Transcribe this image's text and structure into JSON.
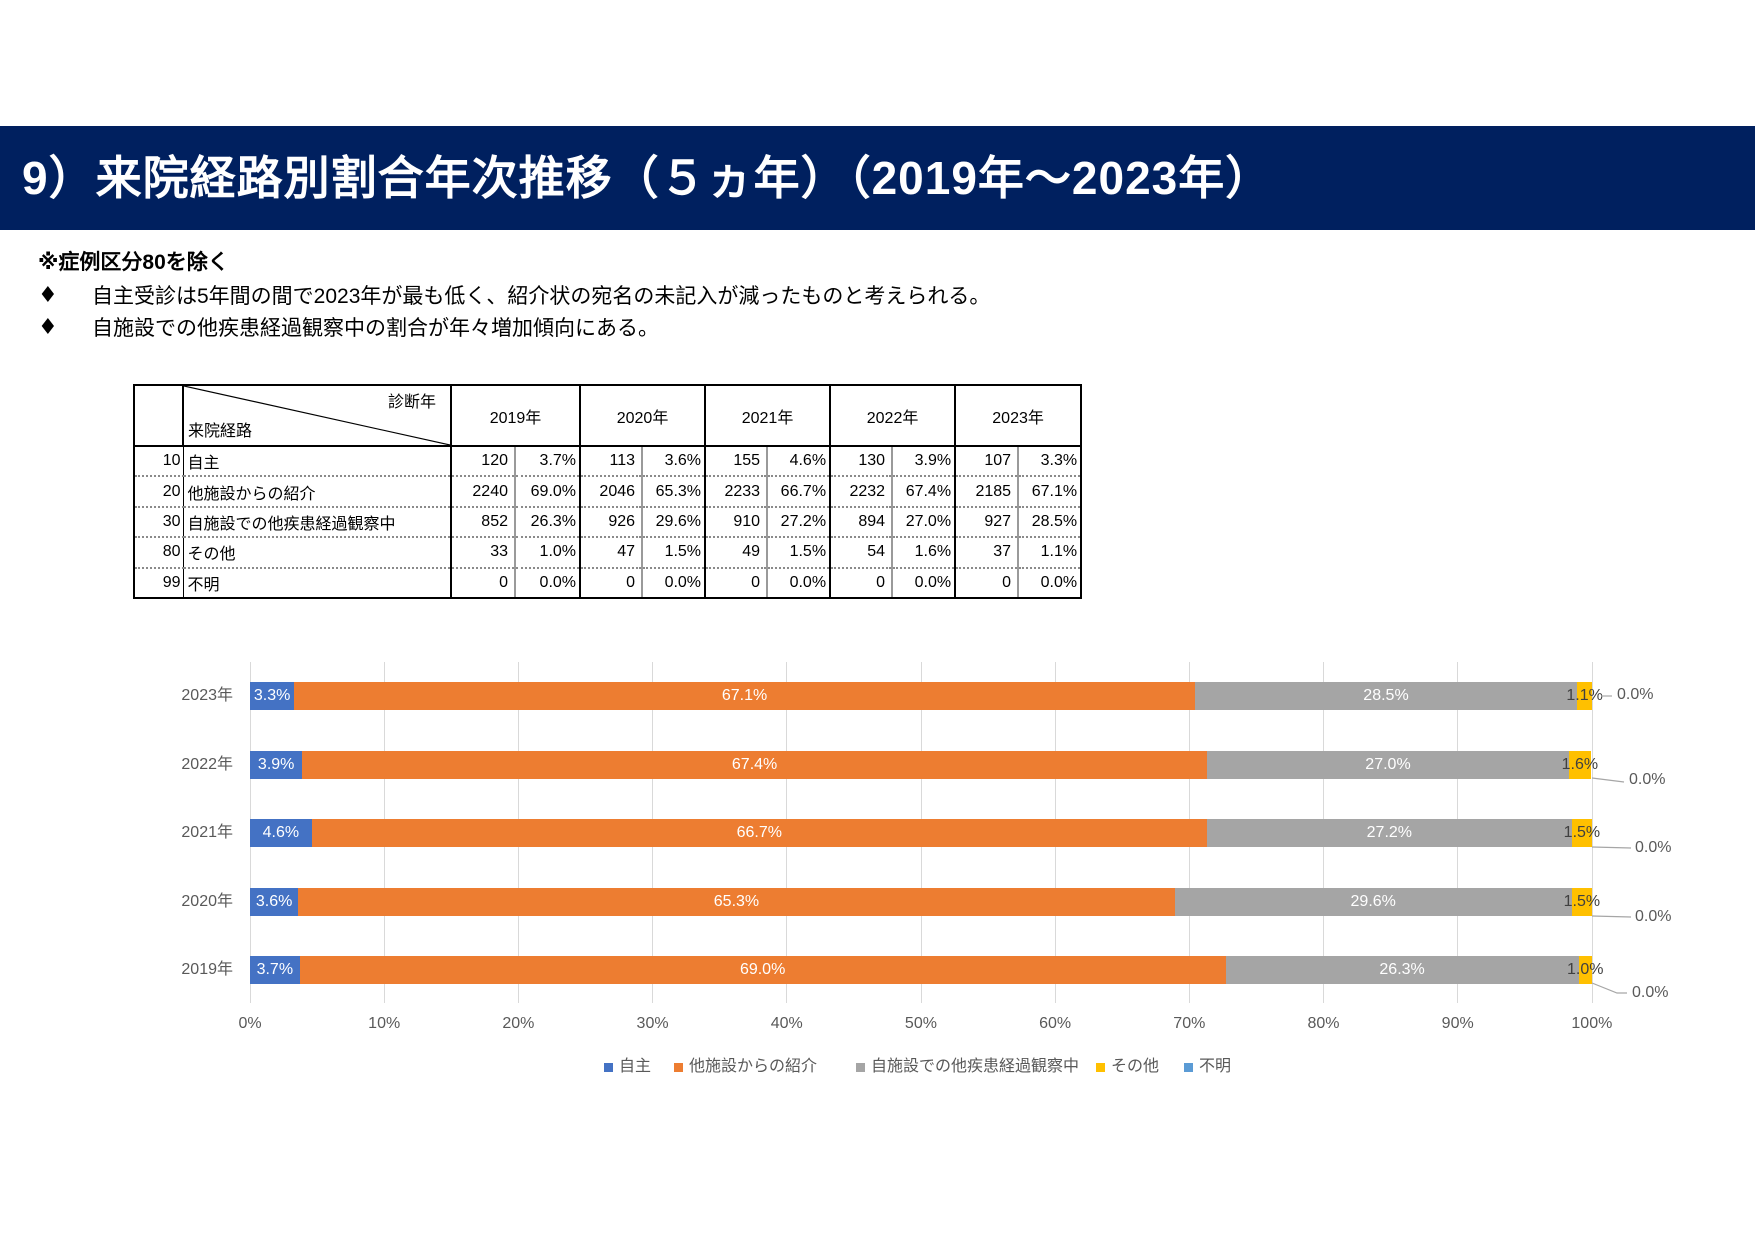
{
  "header": {
    "title": "9）来院経路別割合年次推移（５ヵ年）（2019年～2023年）"
  },
  "notes": {
    "exclusion": "※症例区分80を除く",
    "bullets": [
      {
        "marker": "♦",
        "text": "自主受診は5年間の間で2023年が最も低く、紹介状の宛名の未記入が減ったものと考えられる。"
      },
      {
        "marker": "♦",
        "text": "自施設での他疾患経過観察中の割合が年々増加傾向にある。"
      }
    ]
  },
  "table": {
    "corner_top": "診断年",
    "corner_bottom": "来院経路",
    "years": [
      "2019年",
      "2020年",
      "2021年",
      "2022年",
      "2023年"
    ],
    "rows": [
      {
        "code": "10",
        "label": "自主",
        "values": [
          "120",
          "3.7%",
          "113",
          "3.6%",
          "155",
          "4.6%",
          "130",
          "3.9%",
          "107",
          "3.3%"
        ]
      },
      {
        "code": "20",
        "label": "他施設からの紹介",
        "values": [
          "2240",
          "69.0%",
          "2046",
          "65.3%",
          "2233",
          "66.7%",
          "2232",
          "67.4%",
          "2185",
          "67.1%"
        ]
      },
      {
        "code": "30",
        "label": "自施設での他疾患経過観察中",
        "values": [
          "852",
          "26.3%",
          "926",
          "29.6%",
          "910",
          "27.2%",
          "894",
          "27.0%",
          "927",
          "28.5%"
        ]
      },
      {
        "code": "80",
        "label": "その他",
        "values": [
          "33",
          "1.0%",
          "47",
          "1.5%",
          "49",
          "1.5%",
          "54",
          "1.6%",
          "37",
          "1.1%"
        ]
      },
      {
        "code": "99",
        "label": "不明",
        "values": [
          "0",
          "0.0%",
          "0",
          "0.0%",
          "0",
          "0.0%",
          "0",
          "0.0%",
          "0",
          "0.0%"
        ]
      }
    ]
  },
  "chart_data": {
    "type": "bar",
    "orientation": "horizontal",
    "stacking": "percent",
    "title": "",
    "xlabel": "",
    "ylabel": "",
    "xlim": [
      0,
      100
    ],
    "grid": true,
    "legend_position": "bottom",
    "categories": [
      "2023年",
      "2022年",
      "2021年",
      "2020年",
      "2019年"
    ],
    "x_ticks": [
      "0%",
      "10%",
      "20%",
      "30%",
      "40%",
      "50%",
      "60%",
      "70%",
      "80%",
      "90%",
      "100%"
    ],
    "series": [
      {
        "name": "自主",
        "color": "#4472C4",
        "values": [
          3.3,
          3.9,
          4.6,
          3.6,
          3.7
        ],
        "labels": [
          "3.3%",
          "3.9%",
          "4.6%",
          "3.6%",
          "3.7%"
        ]
      },
      {
        "name": "他施設からの紹介",
        "color": "#ED7D31",
        "values": [
          67.1,
          67.4,
          66.7,
          65.3,
          69.0
        ],
        "labels": [
          "67.1%",
          "67.4%",
          "66.7%",
          "65.3%",
          "69.0%"
        ]
      },
      {
        "name": "自施設での他疾患経過観察中",
        "color": "#A5A5A5",
        "values": [
          28.5,
          27.0,
          27.2,
          29.6,
          26.3
        ],
        "labels": [
          "28.5%",
          "27.0%",
          "27.2%",
          "29.6%",
          "26.3%"
        ]
      },
      {
        "name": "その他",
        "color": "#FFC000",
        "values": [
          1.1,
          1.6,
          1.5,
          1.5,
          1.0
        ],
        "labels": [
          "1.1%",
          "1.6%",
          "1.5%",
          "1.5%",
          "1.0%"
        ]
      },
      {
        "name": "不明",
        "color": "#5B9BD5",
        "values": [
          0.0,
          0.0,
          0.0,
          0.0,
          0.0
        ],
        "labels": [
          "0.0%",
          "0.0%",
          "0.0%",
          "0.0%",
          "0.0%"
        ]
      }
    ]
  }
}
